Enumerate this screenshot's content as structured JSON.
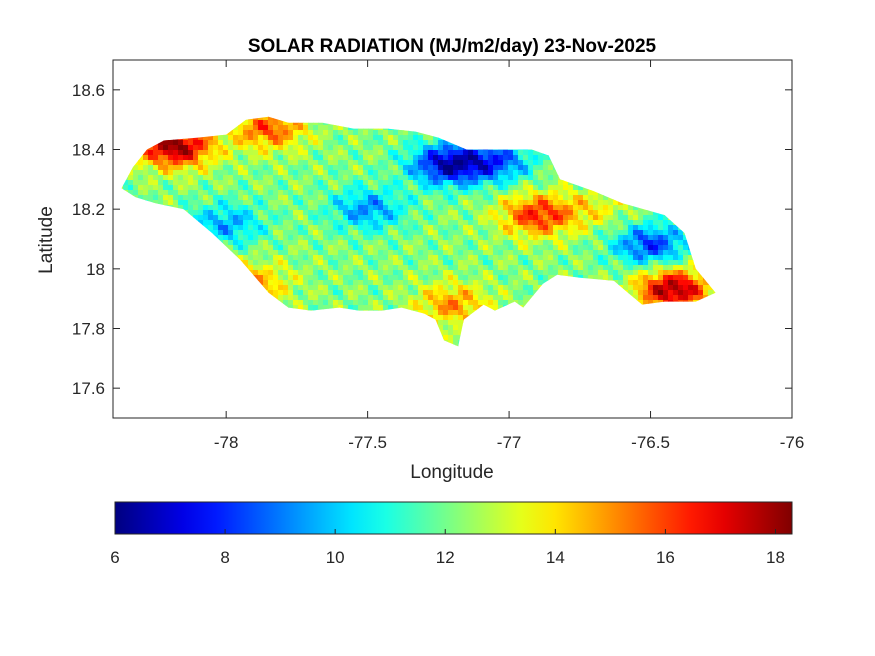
{
  "chart_data": {
    "type": "heatmap",
    "title": "SOLAR RADIATION (MJ/m2/day) 23-Nov-2025",
    "xlabel": "Longitude",
    "ylabel": "Latitude",
    "xlim": [
      -78.4,
      -76
    ],
    "ylim": [
      17.5,
      18.7
    ],
    "x_ticks": [
      -78,
      -77.5,
      -77,
      -76.5,
      -76
    ],
    "x_tick_labels": [
      "-78",
      "-77.5",
      "-77",
      "-76.5",
      "-76"
    ],
    "y_ticks": [
      17.6,
      17.8,
      18,
      18.2,
      18.4,
      18.6
    ],
    "y_tick_labels": [
      "17.6",
      "17.8",
      "18",
      "18.2",
      "18.4",
      "18.6"
    ],
    "colorbar": {
      "colormap": "jet",
      "range": [
        6,
        18.3
      ],
      "ticks": [
        6,
        8,
        10,
        12,
        14,
        16,
        18
      ],
      "tick_labels": [
        "6",
        "8",
        "10",
        "12",
        "14",
        "16",
        "18"
      ],
      "placement": "bottom"
    },
    "region": "Jamaica",
    "boundary": [
      [
        -78.37,
        18.27
      ],
      [
        -78.33,
        18.34
      ],
      [
        -78.28,
        18.4
      ],
      [
        -78.22,
        18.43
      ],
      [
        -78.1,
        18.44
      ],
      [
        -78.0,
        18.45
      ],
      [
        -77.93,
        18.5
      ],
      [
        -77.85,
        18.51
      ],
      [
        -77.78,
        18.49
      ],
      [
        -77.66,
        18.49
      ],
      [
        -77.55,
        18.47
      ],
      [
        -77.43,
        18.47
      ],
      [
        -77.33,
        18.46
      ],
      [
        -77.25,
        18.44
      ],
      [
        -77.15,
        18.4
      ],
      [
        -77.0,
        18.4
      ],
      [
        -76.92,
        18.4
      ],
      [
        -76.86,
        18.38
      ],
      [
        -76.82,
        18.3
      ],
      [
        -76.7,
        18.26
      ],
      [
        -76.6,
        18.22
      ],
      [
        -76.45,
        18.18
      ],
      [
        -76.38,
        18.12
      ],
      [
        -76.34,
        18.0
      ],
      [
        -76.27,
        17.92
      ],
      [
        -76.34,
        17.89
      ],
      [
        -76.45,
        17.89
      ],
      [
        -76.53,
        17.88
      ],
      [
        -76.58,
        17.92
      ],
      [
        -76.63,
        17.96
      ],
      [
        -76.75,
        17.97
      ],
      [
        -76.83,
        17.98
      ],
      [
        -76.88,
        17.95
      ],
      [
        -76.95,
        17.87
      ],
      [
        -76.98,
        17.89
      ],
      [
        -77.05,
        17.86
      ],
      [
        -77.09,
        17.88
      ],
      [
        -77.16,
        17.83
      ],
      [
        -77.18,
        17.74
      ],
      [
        -77.23,
        17.76
      ],
      [
        -77.26,
        17.83
      ],
      [
        -77.3,
        17.85
      ],
      [
        -77.38,
        17.87
      ],
      [
        -77.45,
        17.86
      ],
      [
        -77.53,
        17.86
      ],
      [
        -77.6,
        17.87
      ],
      [
        -77.7,
        17.86
      ],
      [
        -77.78,
        17.87
      ],
      [
        -77.85,
        17.92
      ],
      [
        -77.95,
        18.03
      ],
      [
        -78.05,
        18.12
      ],
      [
        -78.15,
        18.2
      ],
      [
        -78.25,
        18.22
      ],
      [
        -78.32,
        18.24
      ]
    ],
    "field_anomalies": [
      {
        "lon": -78.18,
        "lat": 18.41,
        "value": 18.2
      },
      {
        "lon": -77.85,
        "lat": 18.47,
        "value": 15.8
      },
      {
        "lon": -77.22,
        "lat": 18.35,
        "value": 7.0
      },
      {
        "lon": -77.05,
        "lat": 18.36,
        "value": 8.6
      },
      {
        "lon": -76.9,
        "lat": 18.18,
        "value": 16.3
      },
      {
        "lon": -76.5,
        "lat": 18.08,
        "value": 8.2
      },
      {
        "lon": -76.42,
        "lat": 17.93,
        "value": 18.0
      },
      {
        "lon": -77.5,
        "lat": 18.2,
        "value": 9.3
      },
      {
        "lon": -78.0,
        "lat": 18.15,
        "value": 9.6
      },
      {
        "lon": -77.9,
        "lat": 17.95,
        "value": 14.6
      },
      {
        "lon": -77.2,
        "lat": 17.88,
        "value": 15.0
      },
      {
        "lon": -76.7,
        "lat": 18.2,
        "value": 13.5
      }
    ],
    "background_value": 12.2
  }
}
